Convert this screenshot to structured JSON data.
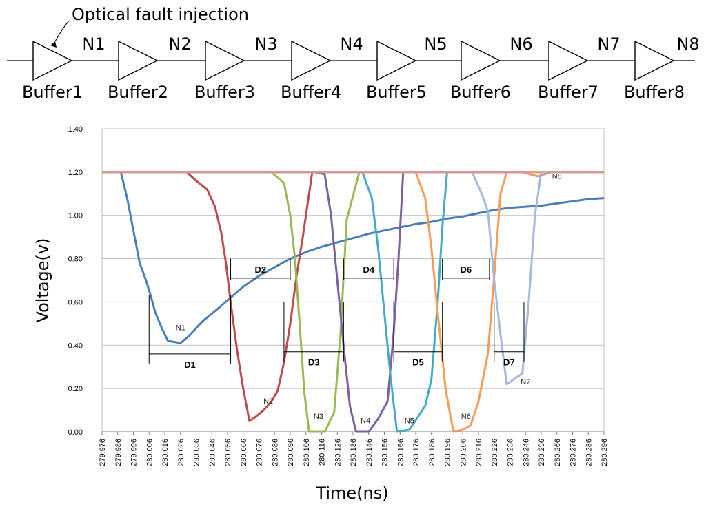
{
  "circuit": {
    "annotation": "Optical fault injection",
    "buffers": [
      "Buffer1",
      "Buffer2",
      "Buffer3",
      "Buffer4",
      "Buffer5",
      "Buffer6",
      "Buffer7",
      "Buffer8"
    ],
    "nodes": [
      "N1",
      "N2",
      "N3",
      "N4",
      "N5",
      "N6",
      "N7",
      "N8"
    ]
  },
  "chart_data": {
    "type": "line",
    "title": "",
    "xlabel": "Time(ns)",
    "ylabel": "Voltage(v)",
    "xlim": [
      279.976,
      280.296
    ],
    "ylim": [
      0,
      1.4
    ],
    "y_ticks": [
      "0.00",
      "0.20",
      "0.40",
      "0.60",
      "0.80",
      "1.00",
      "1.20",
      "1.40"
    ],
    "x_ticks": [
      "279.976",
      "279.986",
      "279.996",
      "280.006",
      "280.016",
      "280.026",
      "280.036",
      "280.046",
      "280.056",
      "280.066",
      "280.076",
      "280.086",
      "280.096",
      "280.106",
      "280.116",
      "280.126",
      "280.136",
      "280.146",
      "280.156",
      "280.166",
      "280.176",
      "280.186",
      "280.196",
      "280.206",
      "280.216",
      "280.226",
      "280.236",
      "280.246",
      "280.256",
      "280.266",
      "280.276",
      "280.286",
      "280.296"
    ],
    "grid": true,
    "series": [
      {
        "name": "N1",
        "color": "#4a7ebb",
        "points": [
          [
            279.976,
            1.2
          ],
          [
            279.988,
            1.2
          ],
          [
            279.992,
            1.08
          ],
          [
            279.996,
            0.93
          ],
          [
            280.0,
            0.78
          ],
          [
            280.004,
            0.7
          ],
          [
            280.007,
            0.63
          ],
          [
            280.01,
            0.55
          ],
          [
            280.014,
            0.48
          ],
          [
            280.018,
            0.42
          ],
          [
            280.026,
            0.41
          ],
          [
            280.031,
            0.44
          ],
          [
            280.04,
            0.51
          ],
          [
            280.05,
            0.57
          ],
          [
            280.058,
            0.62
          ],
          [
            280.066,
            0.67
          ],
          [
            280.076,
            0.72
          ],
          [
            280.086,
            0.76
          ],
          [
            280.096,
            0.8
          ],
          [
            280.106,
            0.83
          ],
          [
            280.116,
            0.855
          ],
          [
            280.126,
            0.875
          ],
          [
            280.136,
            0.895
          ],
          [
            280.146,
            0.915
          ],
          [
            280.156,
            0.93
          ],
          [
            280.166,
            0.945
          ],
          [
            280.176,
            0.96
          ],
          [
            280.186,
            0.97
          ],
          [
            280.196,
            0.985
          ],
          [
            280.206,
            0.995
          ],
          [
            280.216,
            1.01
          ],
          [
            280.226,
            1.025
          ],
          [
            280.236,
            1.035
          ],
          [
            280.246,
            1.04
          ],
          [
            280.256,
            1.045
          ],
          [
            280.266,
            1.055
          ],
          [
            280.276,
            1.065
          ],
          [
            280.286,
            1.075
          ],
          [
            280.296,
            1.08
          ]
        ]
      },
      {
        "name": "N2",
        "color": "#be4b48",
        "points": [
          [
            279.976,
            1.2
          ],
          [
            280.03,
            1.2
          ],
          [
            280.036,
            1.16
          ],
          [
            280.043,
            1.12
          ],
          [
            280.048,
            1.04
          ],
          [
            280.052,
            0.92
          ],
          [
            280.055,
            0.78
          ],
          [
            280.058,
            0.6
          ],
          [
            280.062,
            0.38
          ],
          [
            280.066,
            0.2
          ],
          [
            280.07,
            0.05
          ],
          [
            280.074,
            0.07
          ],
          [
            280.079,
            0.1
          ],
          [
            280.084,
            0.14
          ],
          [
            280.088,
            0.19
          ],
          [
            280.092,
            0.32
          ],
          [
            280.096,
            0.5
          ],
          [
            280.1,
            0.72
          ],
          [
            280.104,
            0.9
          ],
          [
            280.11,
            1.2
          ],
          [
            280.296,
            1.2
          ]
        ]
      },
      {
        "name": "N3",
        "color": "#98b954",
        "points": [
          [
            279.976,
            1.2
          ],
          [
            280.084,
            1.2
          ],
          [
            280.092,
            1.15
          ],
          [
            280.096,
            1.0
          ],
          [
            280.099,
            0.8
          ],
          [
            280.102,
            0.5
          ],
          [
            280.105,
            0.18
          ],
          [
            280.108,
            0.0
          ],
          [
            280.118,
            0.0
          ],
          [
            280.124,
            0.09
          ],
          [
            280.128,
            0.45
          ],
          [
            280.132,
            0.98
          ],
          [
            280.14,
            1.2
          ],
          [
            280.296,
            1.2
          ]
        ]
      },
      {
        "name": "N4",
        "color": "#7d60a0",
        "points": [
          [
            279.976,
            1.2
          ],
          [
            280.112,
            1.2
          ],
          [
            280.118,
            1.19
          ],
          [
            280.122,
            1.0
          ],
          [
            280.126,
            0.7
          ],
          [
            280.13,
            0.4
          ],
          [
            280.134,
            0.12
          ],
          [
            280.138,
            0.0
          ],
          [
            280.146,
            0.0
          ],
          [
            280.152,
            0.06
          ],
          [
            280.158,
            0.14
          ],
          [
            280.162,
            0.46
          ],
          [
            280.165,
            0.8
          ],
          [
            280.168,
            1.2
          ],
          [
            280.296,
            1.2
          ]
        ]
      },
      {
        "name": "N5",
        "color": "#46aac5",
        "points": [
          [
            279.976,
            1.2
          ],
          [
            280.142,
            1.2
          ],
          [
            280.148,
            1.08
          ],
          [
            280.152,
            0.85
          ],
          [
            280.156,
            0.55
          ],
          [
            280.16,
            0.25
          ],
          [
            280.164,
            0.0
          ],
          [
            280.172,
            0.01
          ],
          [
            280.182,
            0.12
          ],
          [
            280.186,
            0.24
          ],
          [
            280.19,
            0.6
          ],
          [
            280.193,
            0.95
          ],
          [
            280.196,
            1.2
          ],
          [
            280.296,
            1.2
          ]
        ]
      },
      {
        "name": "N6",
        "color": "#f59d56",
        "points": [
          [
            279.976,
            1.2
          ],
          [
            280.176,
            1.2
          ],
          [
            280.182,
            1.08
          ],
          [
            280.186,
            0.85
          ],
          [
            280.19,
            0.55
          ],
          [
            280.195,
            0.2
          ],
          [
            280.2,
            0.0
          ],
          [
            280.206,
            0.01
          ],
          [
            280.211,
            0.03
          ],
          [
            280.216,
            0.14
          ],
          [
            280.222,
            0.36
          ],
          [
            280.226,
            0.72
          ],
          [
            280.23,
            1.1
          ],
          [
            280.234,
            1.2
          ],
          [
            280.296,
            1.2
          ]
        ]
      },
      {
        "name": "N7",
        "color": "#a5b8de",
        "points": [
          [
            279.976,
            1.2
          ],
          [
            280.212,
            1.2
          ],
          [
            280.218,
            1.1
          ],
          [
            280.222,
            1.02
          ],
          [
            280.226,
            0.7
          ],
          [
            280.23,
            0.45
          ],
          [
            280.234,
            0.22
          ],
          [
            280.24,
            0.25
          ],
          [
            280.244,
            0.27
          ],
          [
            280.248,
            0.6
          ],
          [
            280.252,
            1.0
          ],
          [
            280.256,
            1.2
          ],
          [
            280.296,
            1.2
          ]
        ]
      },
      {
        "name": "N8",
        "color": "#d99694",
        "points": [
          [
            279.976,
            1.2
          ],
          [
            280.244,
            1.2
          ],
          [
            280.254,
            1.18
          ],
          [
            280.262,
            1.2
          ],
          [
            280.296,
            1.2
          ]
        ]
      }
    ],
    "annotations": [
      {
        "label": "D1",
        "from": 280.006,
        "to": 280.058,
        "y": 0.36,
        "ref_top": 0.63,
        "position": "below"
      },
      {
        "label": "D2",
        "from": 280.058,
        "to": 280.096,
        "y": 0.71,
        "ref_top": 0.8,
        "position": "above"
      },
      {
        "label": "D3",
        "from": 280.092,
        "to": 280.13,
        "y": 0.37,
        "ref_top": 0.6,
        "position": "below"
      },
      {
        "label": "D4",
        "from": 280.13,
        "to": 280.162,
        "y": 0.71,
        "ref_top": 0.8,
        "position": "above"
      },
      {
        "label": "D5",
        "from": 280.162,
        "to": 280.193,
        "y": 0.37,
        "ref_top": 0.6,
        "position": "below"
      },
      {
        "label": "D6",
        "from": 280.193,
        "to": 280.223,
        "y": 0.71,
        "ref_top": 0.8,
        "position": "above"
      },
      {
        "label": "D7",
        "from": 280.226,
        "to": 280.245,
        "y": 0.37,
        "ref_top": 0.6,
        "position": "below"
      }
    ],
    "series_labels": [
      {
        "name": "N1",
        "x": 280.026,
        "y": 0.47
      },
      {
        "name": "N2",
        "x": 280.082,
        "y": 0.13
      },
      {
        "name": "N3",
        "x": 280.114,
        "y": 0.06
      },
      {
        "name": "N4",
        "x": 280.144,
        "y": 0.04
      },
      {
        "name": "N5",
        "x": 280.172,
        "y": 0.04
      },
      {
        "name": "N6",
        "x": 280.208,
        "y": 0.06
      },
      {
        "name": "N7",
        "x": 280.246,
        "y": 0.22
      },
      {
        "name": "N8",
        "x": 280.266,
        "y": 1.17
      }
    ]
  }
}
